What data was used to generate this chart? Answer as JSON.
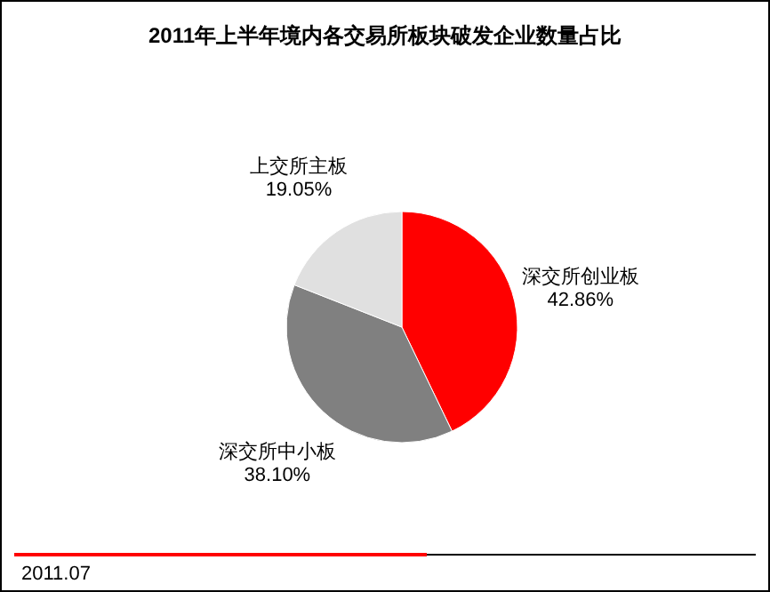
{
  "chart_data": {
    "type": "pie",
    "title": "2011年上半年境内各交易所板块破发企业数量占比",
    "categories": [
      "深交所创业板",
      "深交所中小板",
      "上交所主板"
    ],
    "values": [
      42.86,
      38.1,
      19.05
    ],
    "value_labels": [
      "42.86%",
      "38.10%",
      "19.05%"
    ],
    "colors": [
      "#ff0000",
      "#808080",
      "#e0e0e0"
    ],
    "annotations": [
      "2011.07"
    ]
  }
}
